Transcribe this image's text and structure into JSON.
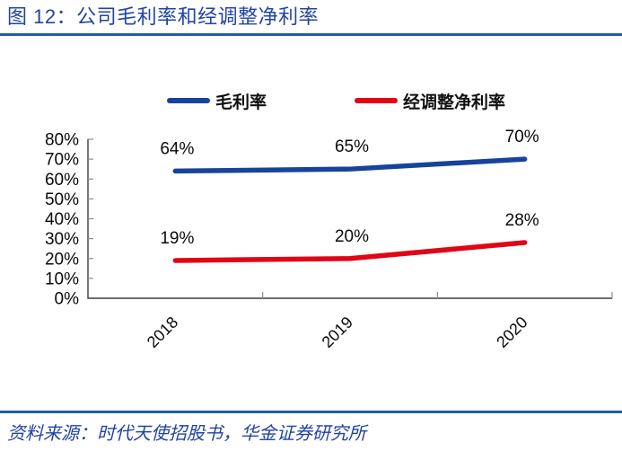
{
  "header": {
    "title": "图 12：公司毛利率和经调整净利率"
  },
  "footer": {
    "source": "资料来源：时代天使招股书，华金证券研究所"
  },
  "colors": {
    "accent_text": "#2243A5",
    "rule_blue": "#1D5FA8",
    "axis": "#3D3D3D",
    "tick": "#8C8C8C",
    "label_text": "#0A0A0A",
    "series_blue": "#18439B",
    "series_red": "#DF0615"
  },
  "legend": {
    "items": [
      {
        "label": "毛利率",
        "color": "#18439B"
      },
      {
        "label": "经调整净利率",
        "color": "#DF0615"
      }
    ]
  },
  "chart_data": {
    "type": "line",
    "title": "公司毛利率和经调整净利率",
    "categories": [
      "2018",
      "2019",
      "2020"
    ],
    "series": [
      {
        "name": "毛利率",
        "color": "#18439B",
        "values": [
          64,
          65,
          70
        ],
        "labels": [
          "64%",
          "65%",
          "70%"
        ]
      },
      {
        "name": "经调整净利率",
        "color": "#DF0615",
        "values": [
          19,
          20,
          28
        ],
        "labels": [
          "19%",
          "20%",
          "28%"
        ]
      }
    ],
    "ylim": [
      0,
      80
    ],
    "ytick_step": 10,
    "ytick_labels": [
      "0%",
      "10%",
      "20%",
      "30%",
      "40%",
      "50%",
      "60%",
      "70%",
      "80%"
    ],
    "xtick_rotation": -45,
    "grid": false,
    "legend_position": "top-center",
    "data_labels": true
  }
}
